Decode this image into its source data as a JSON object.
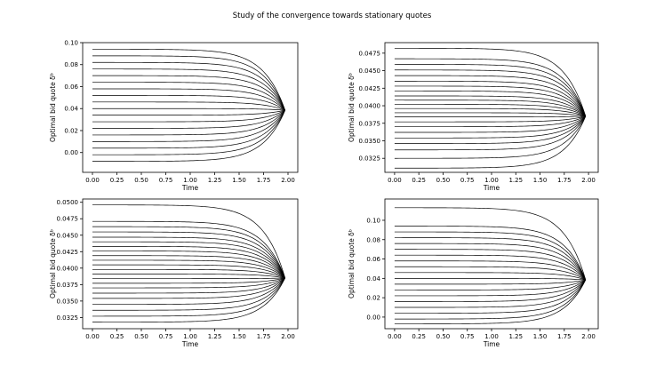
{
  "figure": {
    "title": "Study of the convergence towards stationary quotes"
  },
  "chart_data": [
    {
      "type": "line",
      "xlabel": "Time",
      "ylabel": "Optimal bid quote δᵇ",
      "xlim": [
        -0.1,
        2.1
      ],
      "ylim": [
        -0.018,
        0.1
      ],
      "x_ticks": [
        0.0,
        0.25,
        0.5,
        0.75,
        1.0,
        1.25,
        1.5,
        1.75,
        2.0
      ],
      "x_tick_labels": [
        "0.00",
        "0.25",
        "0.50",
        "0.75",
        "1.00",
        "1.25",
        "1.50",
        "1.75",
        "2.00"
      ],
      "y_ticks": [
        0.0,
        0.02,
        0.04,
        0.06,
        0.08,
        0.1
      ],
      "y_tick_labels": [
        "0.00",
        "0.02",
        "0.04",
        "0.06",
        "0.08",
        "0.10"
      ],
      "x_range": [
        0.0,
        1.97
      ],
      "converge_value": 0.0385,
      "initial_values": [
        0.094,
        0.088,
        0.082,
        0.076,
        0.07,
        0.064,
        0.058,
        0.052,
        0.046,
        0.04,
        0.034,
        0.028,
        0.022,
        0.016,
        0.01,
        0.004,
        -0.002,
        -0.008
      ],
      "line_color": "#000000",
      "grid": false,
      "legend": "none"
    },
    {
      "type": "line",
      "xlabel": "Time",
      "ylabel": "Optimal bid quote δᵇ",
      "xlim": [
        -0.1,
        2.1
      ],
      "ylim": [
        0.0305,
        0.049
      ],
      "x_ticks": [
        0.0,
        0.25,
        0.5,
        0.75,
        1.0,
        1.25,
        1.5,
        1.75,
        2.0
      ],
      "x_tick_labels": [
        "0.00",
        "0.25",
        "0.50",
        "0.75",
        "1.00",
        "1.25",
        "1.50",
        "1.75",
        "2.00"
      ],
      "y_ticks": [
        0.0325,
        0.035,
        0.0375,
        0.04,
        0.0425,
        0.045,
        0.0475
      ],
      "y_tick_labels": [
        "0.0325",
        "0.0350",
        "0.0375",
        "0.0400",
        "0.0425",
        "0.0450",
        "0.0475"
      ],
      "x_range": [
        0.0,
        1.97
      ],
      "converge_value": 0.0385,
      "initial_values": [
        0.0482,
        0.0467,
        0.0459,
        0.0451,
        0.0443,
        0.0435,
        0.0428,
        0.0421,
        0.0414,
        0.0408,
        0.0402,
        0.0396,
        0.039,
        0.0384,
        0.0377,
        0.037,
        0.0362,
        0.0354,
        0.0346,
        0.0337,
        0.0325,
        0.0311
      ],
      "line_color": "#000000",
      "grid": false,
      "legend": "none"
    },
    {
      "type": "line",
      "xlabel": "Time",
      "ylabel": "Optimal bid quote δᵇ",
      "xlim": [
        -0.1,
        2.1
      ],
      "ylim": [
        0.0308,
        0.0505
      ],
      "x_ticks": [
        0.0,
        0.25,
        0.5,
        0.75,
        1.0,
        1.25,
        1.5,
        1.75,
        2.0
      ],
      "x_tick_labels": [
        "0.00",
        "0.25",
        "0.50",
        "0.75",
        "1.00",
        "1.25",
        "1.50",
        "1.75",
        "2.00"
      ],
      "y_ticks": [
        0.0325,
        0.035,
        0.0375,
        0.04,
        0.0425,
        0.045,
        0.0475,
        0.05
      ],
      "y_tick_labels": [
        "0.0325",
        "0.0350",
        "0.0375",
        "0.0400",
        "0.0425",
        "0.0450",
        "0.0475",
        "0.0500"
      ],
      "x_range": [
        0.0,
        1.97
      ],
      "converge_value": 0.0385,
      "initial_values": [
        0.0496,
        0.0471,
        0.0463,
        0.0455,
        0.0447,
        0.044,
        0.0433,
        0.0426,
        0.0419,
        0.0412,
        0.0405,
        0.0398,
        0.0391,
        0.0384,
        0.0377,
        0.037,
        0.0362,
        0.0354,
        0.0345,
        0.0336,
        0.0327,
        0.0318
      ],
      "line_color": "#000000",
      "grid": false,
      "legend": "none"
    },
    {
      "type": "line",
      "xlabel": "Time",
      "ylabel": "Optimal bid quote δᵇ",
      "xlim": [
        -0.1,
        2.1
      ],
      "ylim": [
        -0.012,
        0.122
      ],
      "x_ticks": [
        0.0,
        0.25,
        0.5,
        0.75,
        1.0,
        1.25,
        1.5,
        1.75,
        2.0
      ],
      "x_tick_labels": [
        "0.00",
        "0.25",
        "0.50",
        "0.75",
        "1.00",
        "1.25",
        "1.50",
        "1.75",
        "2.00"
      ],
      "y_ticks": [
        0.0,
        0.02,
        0.04,
        0.06,
        0.08,
        0.1
      ],
      "y_tick_labels": [
        "0.00",
        "0.02",
        "0.04",
        "0.06",
        "0.08",
        "0.10"
      ],
      "x_range": [
        0.0,
        1.97
      ],
      "converge_value": 0.0385,
      "initial_values": [
        0.113,
        0.094,
        0.088,
        0.082,
        0.076,
        0.07,
        0.064,
        0.058,
        0.052,
        0.046,
        0.04,
        0.034,
        0.028,
        0.022,
        0.016,
        0.01,
        0.004,
        -0.002,
        -0.007
      ],
      "line_color": "#000000",
      "grid": false,
      "legend": "none"
    }
  ]
}
